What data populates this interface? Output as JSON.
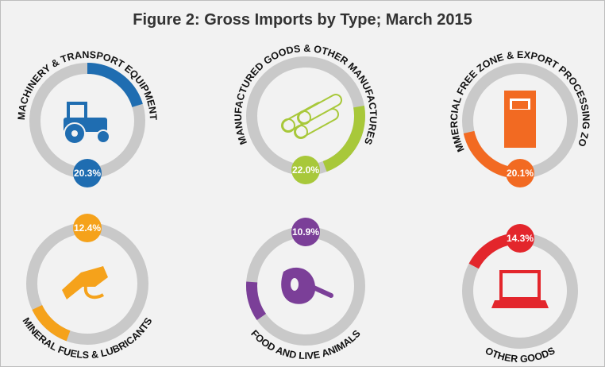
{
  "chart_data": {
    "type": "ring",
    "title": "Figure 2: Gross Imports by Type; March 2015",
    "categories": [
      "MACHINERY & TRANSPORT EQUIPMENT",
      "MANUFACTURED GOODS & OTHER MANUFACTURES",
      "COMMERCIAL FREE ZONE & EXPORT PROCESSING ZONES",
      "MINERAL FUELS & LUBRICANTS",
      "FOOD AND LIVE ANIMALS",
      "OTHER GOODS"
    ],
    "values": [
      20.3,
      22.0,
      20.1,
      12.4,
      10.9,
      14.3
    ],
    "value_labels": [
      "20.3%",
      "22.0%",
      "20.1%",
      "12.4%",
      "10.9%",
      "14.3%"
    ],
    "colors": [
      "#1f6db1",
      "#a8c83a",
      "#f26a22",
      "#f5a21b",
      "#7b3f98",
      "#e3262c"
    ]
  }
}
